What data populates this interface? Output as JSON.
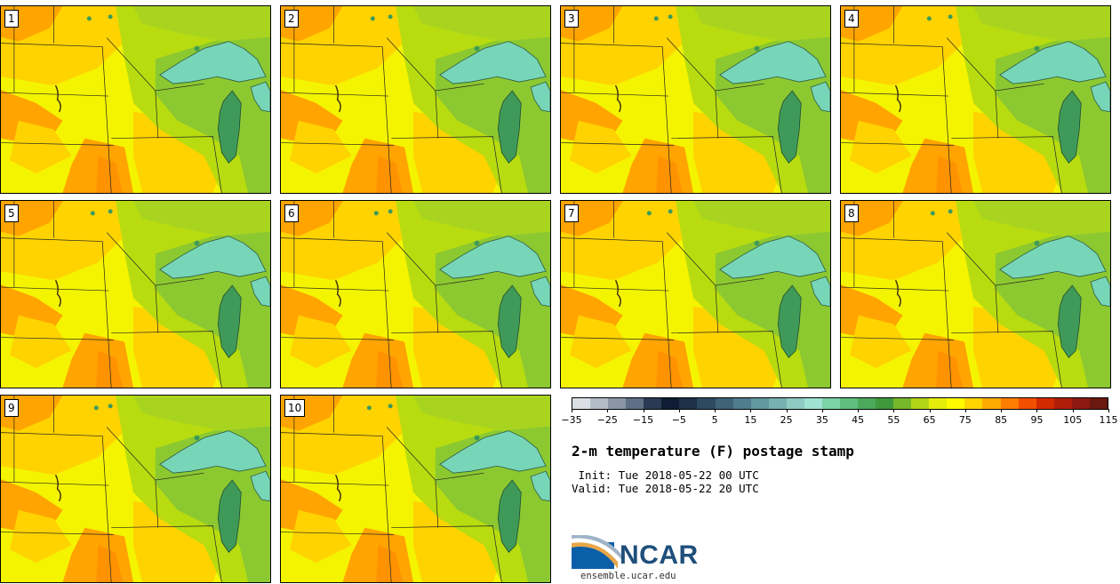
{
  "stamps": [
    {
      "label": "1"
    },
    {
      "label": "2"
    },
    {
      "label": "3"
    },
    {
      "label": "4"
    },
    {
      "label": "5"
    },
    {
      "label": "6"
    },
    {
      "label": "7"
    },
    {
      "label": "8"
    },
    {
      "label": "9"
    },
    {
      "label": "10"
    }
  ],
  "legend": {
    "tick_labels": [
      "−35",
      "−25",
      "−15",
      "−5",
      "5",
      "15",
      "25",
      "35",
      "45",
      "55",
      "65",
      "75",
      "85",
      "95",
      "105",
      "115"
    ],
    "colors": [
      "#dce0e6",
      "#b4bcc6",
      "#8a96a6",
      "#5f6f86",
      "#2a3a54",
      "#0f1c33",
      "#1c3148",
      "#2e4a62",
      "#3f6378",
      "#4f7c8e",
      "#62979f",
      "#77b2b0",
      "#8fcbc2",
      "#9fe3d4",
      "#7bd3a6",
      "#5fbf7e",
      "#4ca85a",
      "#3f9a3c",
      "#76b82a",
      "#b4d418",
      "#e6ec0a",
      "#fffa00",
      "#ffd400",
      "#ffaa00",
      "#ff7d00",
      "#f24f00",
      "#d42a00",
      "#b01e0a",
      "#8c1a12",
      "#6a1810"
    ]
  },
  "title": "2-m temperature (F) postage stamp",
  "init_line": " Init: Tue 2018-05-22 00 UTC",
  "valid_line": "Valid: Tue 2018-05-22 20 UTC",
  "logo": {
    "text": "NCAR",
    "site": "ensemble.ucar.edu"
  },
  "map_colors": {
    "hot": "#ffa400",
    "warm": "#ffd300",
    "mild": "#f4f400",
    "cool": "#b8dc10",
    "cooler": "#8cc830",
    "water": "#78d6b8",
    "lake_mi": "#3f9a5a",
    "border": "#222222"
  }
}
